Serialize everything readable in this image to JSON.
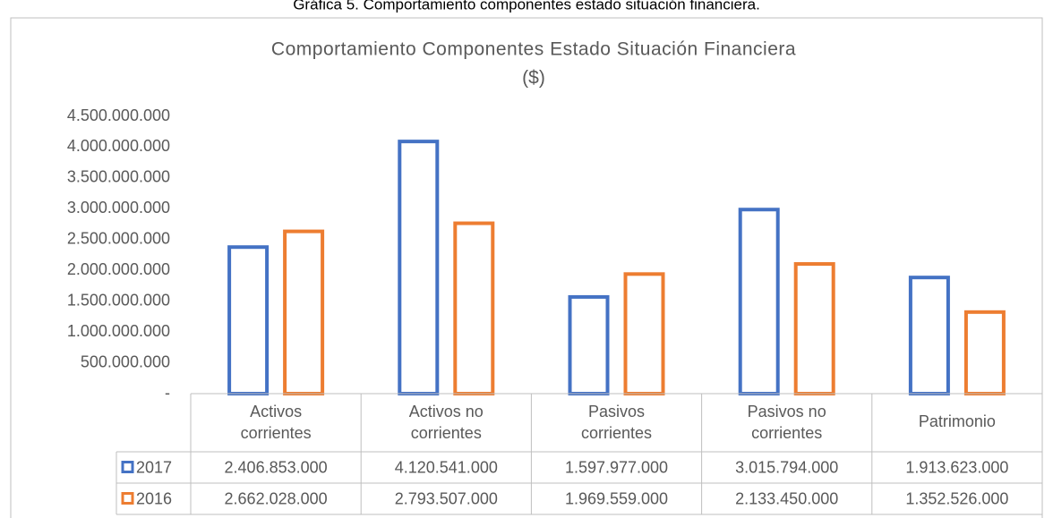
{
  "caption": "Gráfica 5. Comportamiento componentes estado situación financiera.",
  "chart_data": {
    "type": "bar",
    "title": "Comportamiento Componentes Estado Situación Financiera",
    "subtitle": "($)",
    "categories": [
      "Activos corrientes",
      "Activos no corrientes",
      "Pasivos corrientes",
      "Pasivos no corrientes",
      "Patrimonio"
    ],
    "series": [
      {
        "name": "2017",
        "color": "#4472c4",
        "values": [
          2406853000,
          4120541000,
          1597977000,
          3015794000,
          1913623000
        ],
        "value_labels": [
          "2.406.853.000",
          "4.120.541.000",
          "1.597.977.000",
          "3.015.794.000",
          "1.913.623.000"
        ]
      },
      {
        "name": "2016",
        "color": "#ed7d31",
        "values": [
          2662028000,
          2793507000,
          1969559000,
          2133450000,
          1352526000
        ],
        "value_labels": [
          "2.662.028.000",
          "2.793.507.000",
          "1.969.559.000",
          "2.133.450.000",
          "1.352.526.000"
        ]
      }
    ],
    "ylim": [
      0,
      4500000000
    ],
    "yticks": [
      {
        "value": 0,
        "label": "-"
      },
      {
        "value": 500000000,
        "label": "500.000.000"
      },
      {
        "value": 1000000000,
        "label": "1.000.000.000"
      },
      {
        "value": 1500000000,
        "label": "1.500.000.000"
      },
      {
        "value": 2000000000,
        "label": "2.000.000.000"
      },
      {
        "value": 2500000000,
        "label": "2.500.000.000"
      },
      {
        "value": 3000000000,
        "label": "3.000.000.000"
      },
      {
        "value": 3500000000,
        "label": "3.500.000.000"
      },
      {
        "value": 4000000000,
        "label": "4.000.000.000"
      },
      {
        "value": 4500000000,
        "label": "4.500.000.000"
      }
    ],
    "grid": false,
    "data_table": true
  }
}
